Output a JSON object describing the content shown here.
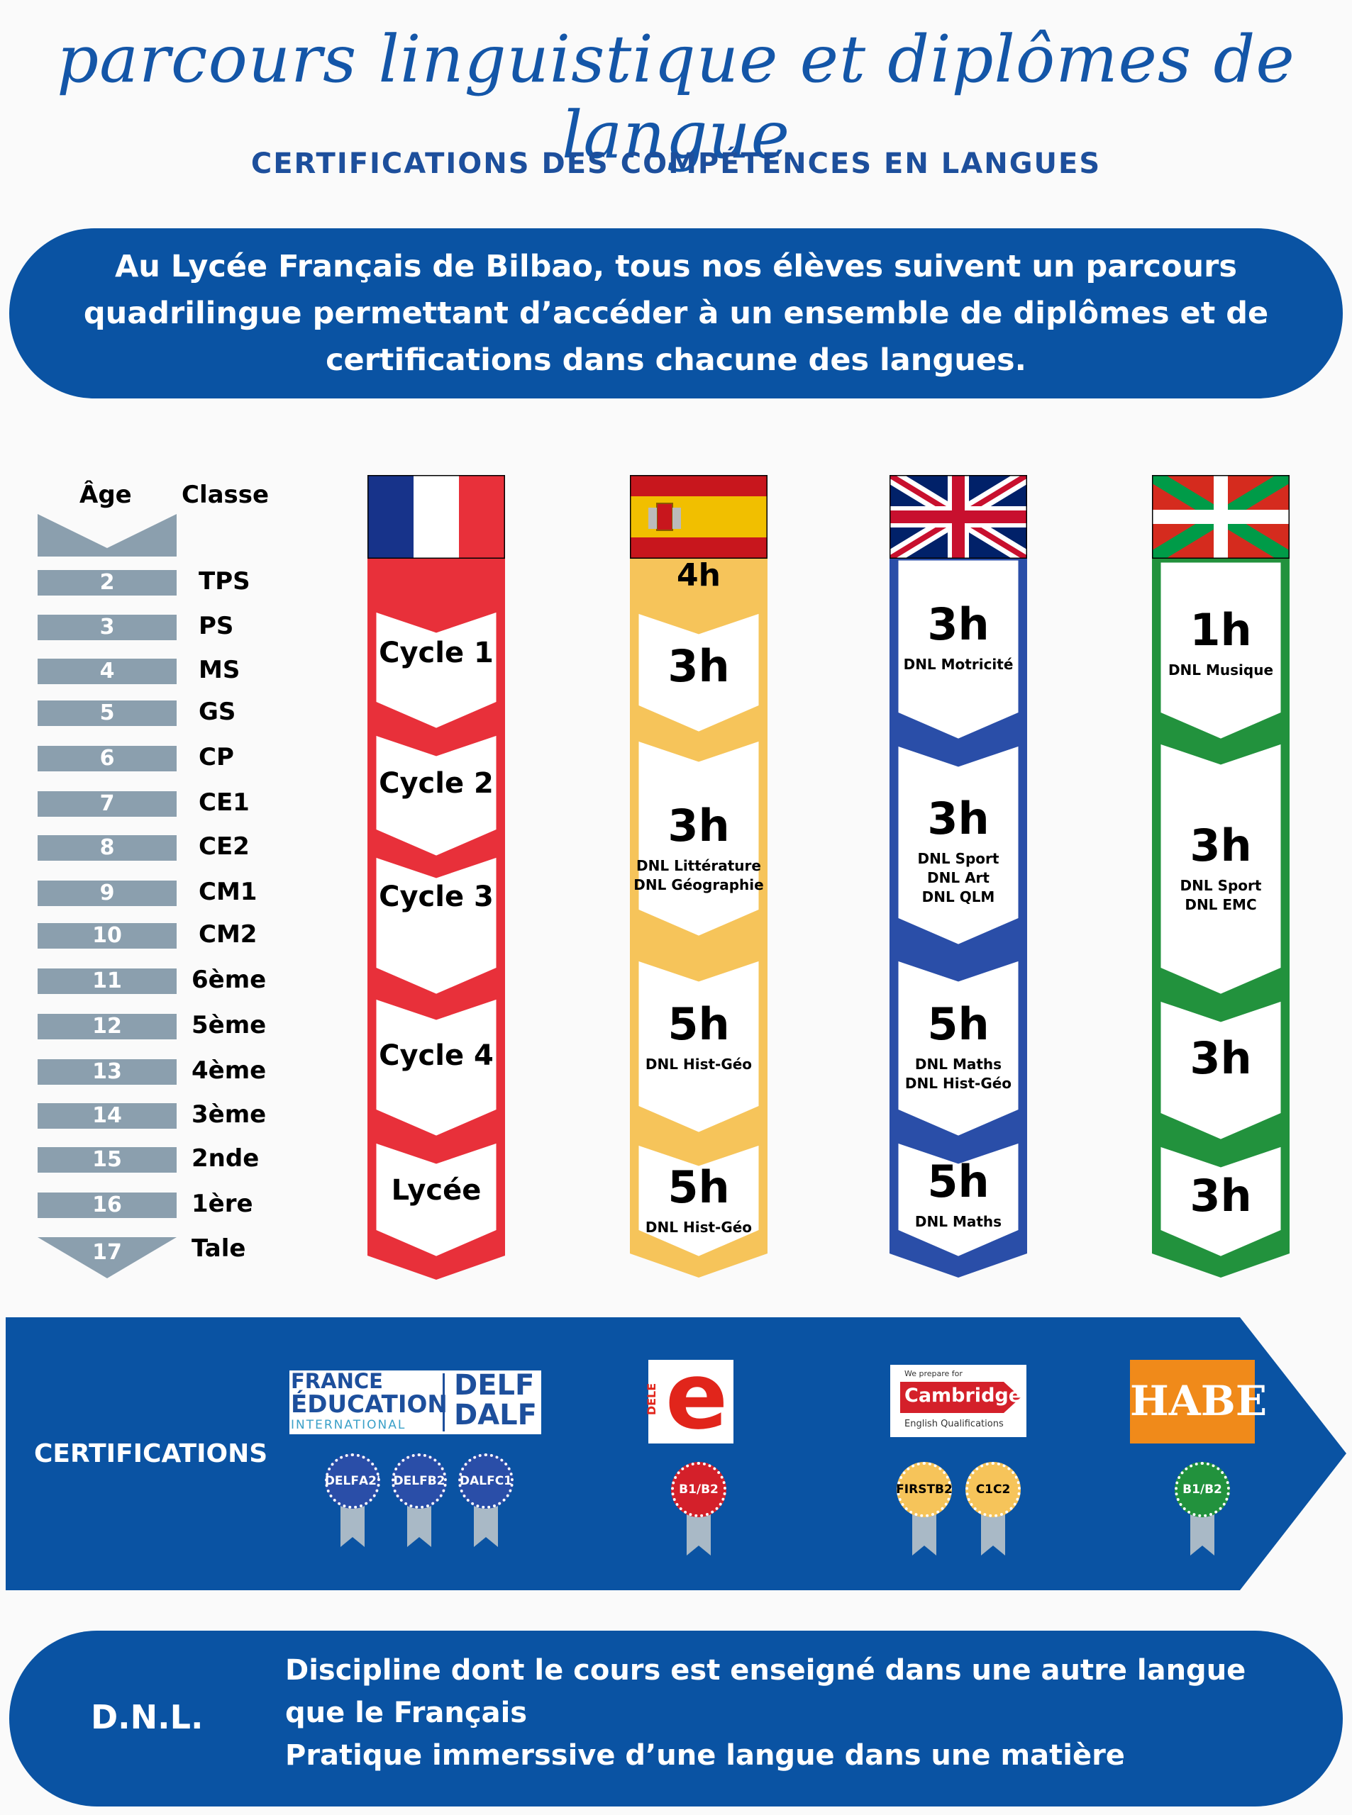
{
  "title": "parcours linguistique et diplômes de langue",
  "subtitle": "CERTIFICATIONS DES COMPÉTENCES EN LANGUES",
  "intro": "Au Lycée Français de Bilbao, tous nos élèves suivent un parcours quadrilingue permettant d’accéder à un ensemble de diplômes et de certifications dans chacune des langues.",
  "table": {
    "age_header": "Âge",
    "class_header": "Classe",
    "rows": [
      {
        "age": "2",
        "class": "TPS"
      },
      {
        "age": "3",
        "class": "PS"
      },
      {
        "age": "4",
        "class": "MS"
      },
      {
        "age": "5",
        "class": "GS"
      },
      {
        "age": "6",
        "class": "CP"
      },
      {
        "age": "7",
        "class": "CE1"
      },
      {
        "age": "8",
        "class": "CE2"
      },
      {
        "age": "9",
        "class": "CM1"
      },
      {
        "age": "10",
        "class": "CM2"
      },
      {
        "age": "11",
        "class": "6ème"
      },
      {
        "age": "12",
        "class": "5ème"
      },
      {
        "age": "13",
        "class": "4ème"
      },
      {
        "age": "14",
        "class": "3ème"
      },
      {
        "age": "15",
        "class": "2nde"
      },
      {
        "age": "16",
        "class": "1ère"
      },
      {
        "age": "17",
        "class": "Tale"
      }
    ]
  },
  "columns": {
    "french": {
      "flag": "france-flag",
      "color": "#e8303a",
      "segments": [
        "Cycle 1",
        "Cycle 2",
        "Cycle 3",
        "Cycle 4",
        "Lycée"
      ]
    },
    "spanish": {
      "flag": "spain-flag",
      "color": "#f6c45a",
      "segments": [
        {
          "hours": "4h",
          "sub": []
        },
        {
          "hours": "3h",
          "sub": []
        },
        {
          "hours": "3h",
          "sub": [
            "DNL Littérature",
            "DNL Géographie"
          ]
        },
        {
          "hours": "5h",
          "sub": [
            "DNL Hist-Géo"
          ]
        },
        {
          "hours": "5h",
          "sub": [
            "DNL Hist-Géo"
          ]
        }
      ]
    },
    "english": {
      "flag": "uk-flag",
      "color": "#2a4ea8",
      "segments": [
        {
          "hours": "3h",
          "sub": [
            "DNL Motricité"
          ]
        },
        {
          "hours": "3h",
          "sub": [
            "DNL Sport",
            "DNL Art",
            "DNL QLM"
          ]
        },
        {
          "hours": "5h",
          "sub": [
            "DNL Maths",
            "DNL Hist-Géo"
          ]
        },
        {
          "hours": "5h",
          "sub": [
            "DNL Maths"
          ]
        }
      ]
    },
    "basque": {
      "flag": "basque-flag",
      "color": "#22923d",
      "segments": [
        {
          "hours": "1h",
          "sub": [
            "DNL Musique"
          ]
        },
        {
          "hours": "3h",
          "sub": [
            "DNL Sport",
            "DNL EMC"
          ]
        },
        {
          "hours": "3h",
          "sub": []
        },
        {
          "hours": "3h",
          "sub": []
        }
      ]
    }
  },
  "certifications": {
    "label": "CERTIFICATIONS",
    "french_logo": {
      "line1": "FRANCE",
      "line2": "ÉDUCATION",
      "line3": "INTERNATIONAL",
      "delf": "DELF",
      "dalf": "DALF"
    },
    "french_medals": [
      [
        "DELF",
        "A2'"
      ],
      [
        "DELF",
        "B2"
      ],
      [
        "DALF",
        "C1"
      ]
    ],
    "spanish_logo": {
      "vertical": "DELE",
      "letter": "e"
    },
    "spanish_medals": [
      [
        "B1/B2"
      ]
    ],
    "english_logo": {
      "small": "We prepare for",
      "name": "Cambridge",
      "sub": "English Qualifications"
    },
    "english_medals": [
      [
        "FIRST",
        "B2"
      ],
      [
        "C1",
        "C2"
      ]
    ],
    "basque_logo": {
      "name": "HABE"
    },
    "basque_medals": [
      [
        "B1/B2"
      ]
    ]
  },
  "dnl": {
    "title": "D.N.L.",
    "lines": [
      "Discipline dont le cours est enseigné dans une autre langue",
      "que le Français",
      "Pratique immerssive d’une langue dans une matière"
    ]
  }
}
